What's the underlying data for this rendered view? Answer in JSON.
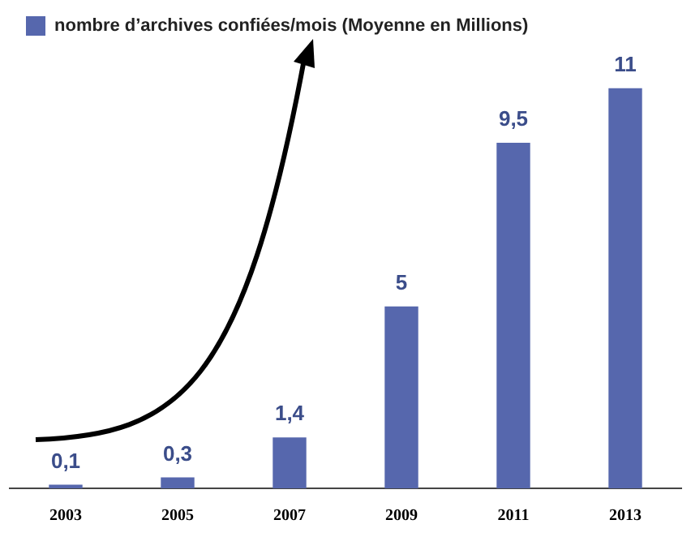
{
  "chart_data": {
    "type": "bar",
    "categories": [
      "2003",
      "2005",
      "2007",
      "2009",
      "2011",
      "2013"
    ],
    "series": [
      {
        "name": "nombre d’archives confiées/mois (Moyenne en Millions)",
        "color": "#5667ad",
        "values": [
          0.1,
          0.3,
          1.4,
          5,
          9.5,
          11
        ],
        "value_labels": [
          "0,1",
          "0,3",
          "1,4",
          "5",
          "9,5",
          "11"
        ]
      }
    ],
    "legend": "top left"
  }
}
